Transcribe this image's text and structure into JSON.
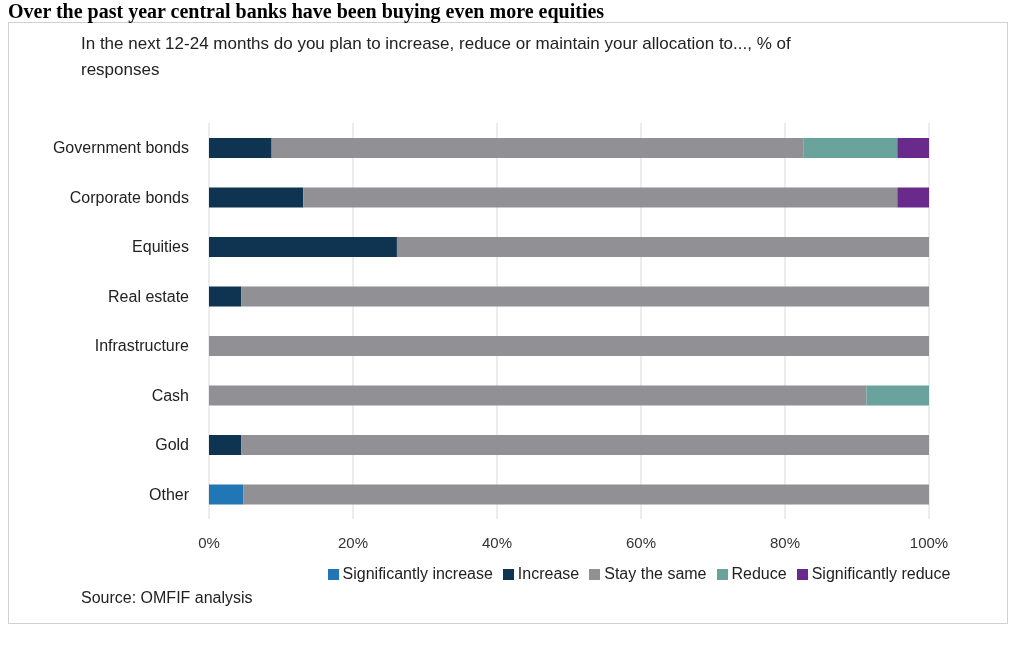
{
  "chart_data": {
    "type": "bar",
    "orientation": "horizontal",
    "stacked": true,
    "title": "Over the past year central banks have been buying even more equities",
    "subtitle": "In the next 12-24 months do you plan to increase, reduce or maintain your allocation to..., % of responses",
    "categories": [
      "Government bonds",
      "Corporate bonds",
      "Equities",
      "Real estate",
      "Infrastructure",
      "Cash",
      "Gold",
      "Other"
    ],
    "series": [
      {
        "name": "Significantly increase",
        "color": "#2176b5",
        "values": [
          0,
          0,
          0,
          0,
          0,
          0,
          0,
          4.8
        ]
      },
      {
        "name": "Increase",
        "color": "#0e3451",
        "values": [
          8.7,
          13.1,
          26.1,
          4.5,
          0,
          0,
          4.5,
          0
        ]
      },
      {
        "name": "Stay the same",
        "color": "#909095",
        "values": [
          73.9,
          82.5,
          73.9,
          95.5,
          100,
          91.3,
          95.5,
          95.2
        ]
      },
      {
        "name": "Reduce",
        "color": "#6aa39c",
        "values": [
          13,
          0,
          0,
          0,
          0,
          8.7,
          0,
          0
        ]
      },
      {
        "name": "Significantly reduce",
        "color": "#6a2a8c",
        "values": [
          4.4,
          4.4,
          0,
          0,
          0,
          0,
          0,
          0
        ]
      }
    ],
    "xlim": [
      0,
      100
    ],
    "xticks": [
      {
        "value": 0,
        "label": "0%"
      },
      {
        "value": 20,
        "label": "20%"
      },
      {
        "value": 40,
        "label": "40%"
      },
      {
        "value": 60,
        "label": "60%"
      },
      {
        "value": 80,
        "label": "80%"
      },
      {
        "value": 100,
        "label": "100%"
      }
    ],
    "grid": "x",
    "legend": "bottom",
    "annotations": [
      "Source: OMFIF analysis"
    ]
  }
}
